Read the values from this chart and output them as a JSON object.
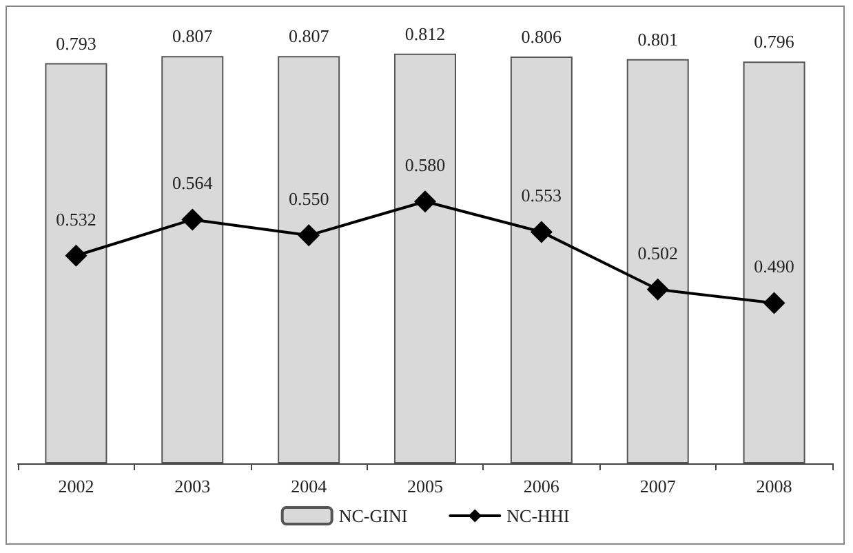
{
  "chart_data": {
    "type": "bar",
    "categories": [
      "2002",
      "2003",
      "2004",
      "2005",
      "2006",
      "2007",
      "2008"
    ],
    "series": [
      {
        "name": "NC-GINI",
        "color": "#d9d9d9",
        "values": [
          0.793,
          0.807,
          0.807,
          0.812,
          0.806,
          0.801,
          0.796
        ],
        "value_labels": [
          "0.793",
          "0.807",
          "0.807",
          "0.812",
          "0.806",
          "0.801",
          "0.796"
        ]
      },
      {
        "name": "NC-HHI",
        "type": "line",
        "axis": "y2",
        "color": "#000000",
        "values": [
          0.532,
          0.564,
          0.55,
          0.58,
          0.553,
          0.502,
          0.49
        ],
        "value_labels": [
          "0.532",
          "0.564",
          "0.550",
          "0.580",
          "0.553",
          "0.502",
          "0.490"
        ]
      }
    ],
    "tick_labels": "x",
    "grid": false,
    "legend": "bottom",
    "marker": "diamond",
    "line_style": "solid"
  }
}
